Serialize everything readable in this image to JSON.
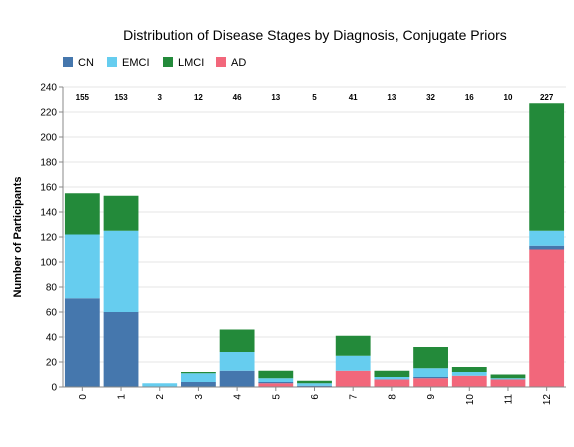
{
  "chart_data": {
    "type": "bar",
    "stacked": true,
    "title": "Distribution of Disease Stages by Diagnosis, Conjugate Priors",
    "xlabel": "",
    "ylabel": "Number of Participants",
    "ylim": [
      0,
      240
    ],
    "yticks": [
      0,
      20,
      40,
      60,
      80,
      100,
      120,
      140,
      160,
      180,
      200,
      220,
      240
    ],
    "grid": true,
    "legend_position": "top-left",
    "categories": [
      "0",
      "1",
      "2",
      "3",
      "4",
      "5",
      "6",
      "7",
      "8",
      "9",
      "10",
      "11",
      "12"
    ],
    "totals": [
      "155",
      "153",
      "3",
      "12",
      "46",
      "13",
      "5",
      "41",
      "13",
      "32",
      "16",
      "10",
      "227"
    ],
    "series": [
      {
        "name": "AD",
        "color": "#f2677b",
        "values": [
          0,
          0,
          0,
          0,
          0,
          3,
          0,
          13,
          6,
          7,
          9,
          6,
          110
        ]
      },
      {
        "name": "CN",
        "color": "#4577ad",
        "values": [
          71,
          60,
          0,
          4,
          13,
          1,
          1,
          0,
          0,
          1,
          0,
          0,
          3
        ]
      },
      {
        "name": "EMCI",
        "color": "#66cdef",
        "values": [
          51,
          65,
          3,
          7,
          15,
          3,
          2,
          12,
          2,
          7,
          3,
          1,
          12
        ]
      },
      {
        "name": "LMCI",
        "color": "#238a3a",
        "values": [
          33,
          28,
          0,
          1,
          18,
          6,
          2,
          16,
          5,
          17,
          4,
          3,
          102
        ]
      }
    ],
    "legend": [
      {
        "name": "CN",
        "color": "#4577ad"
      },
      {
        "name": "EMCI",
        "color": "#66cdef"
      },
      {
        "name": "LMCI",
        "color": "#238a3a"
      },
      {
        "name": "AD",
        "color": "#f2677b"
      }
    ]
  }
}
